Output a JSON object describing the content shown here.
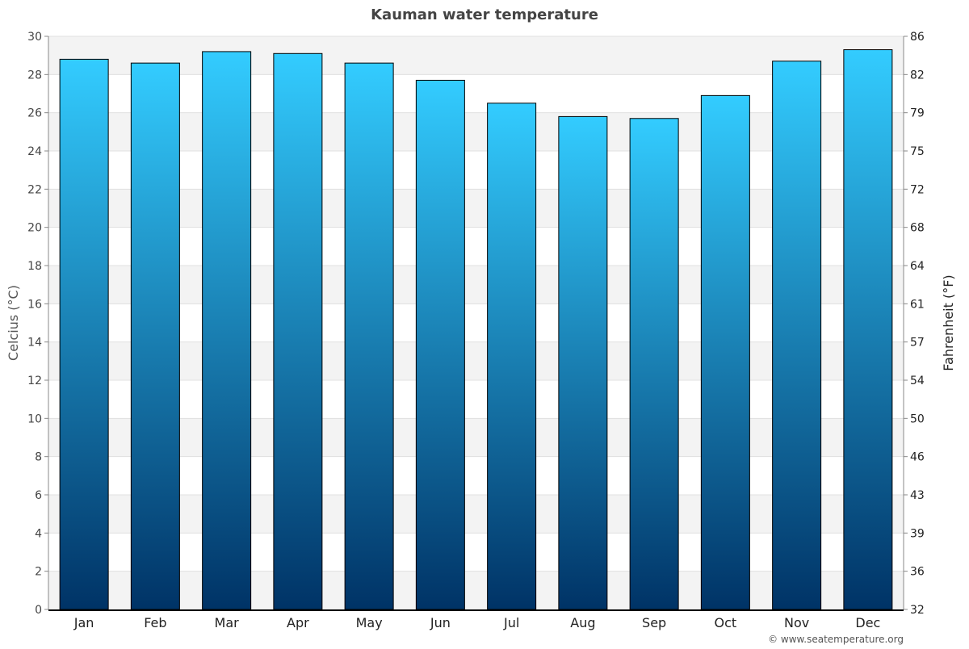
{
  "chart_data": {
    "type": "bar",
    "title": "Kauman water temperature",
    "ylabel": "Celcius (°C)",
    "ylabel_right": "Fahrenheit (°F)",
    "categories": [
      "Jan",
      "Feb",
      "Mar",
      "Apr",
      "May",
      "Jun",
      "Jul",
      "Aug",
      "Sep",
      "Oct",
      "Nov",
      "Dec"
    ],
    "values": [
      28.8,
      28.6,
      29.2,
      29.1,
      28.6,
      27.7,
      26.5,
      25.8,
      25.7,
      26.9,
      28.7,
      29.3
    ],
    "ylim": [
      0,
      30
    ],
    "yticks": [
      0,
      2,
      4,
      6,
      8,
      10,
      12,
      14,
      16,
      18,
      20,
      22,
      24,
      26,
      28,
      30
    ],
    "yticks_right": [
      "32",
      "36",
      "39",
      "43",
      "46",
      "50",
      "54",
      "57",
      "61",
      "64",
      "68",
      "72",
      "75",
      "79",
      "82",
      "86"
    ],
    "grid": true,
    "bar_color_top": "#33ccff",
    "bar_color_bottom": "#003366"
  },
  "footer": {
    "credit": "© www.seatemperature.org"
  }
}
